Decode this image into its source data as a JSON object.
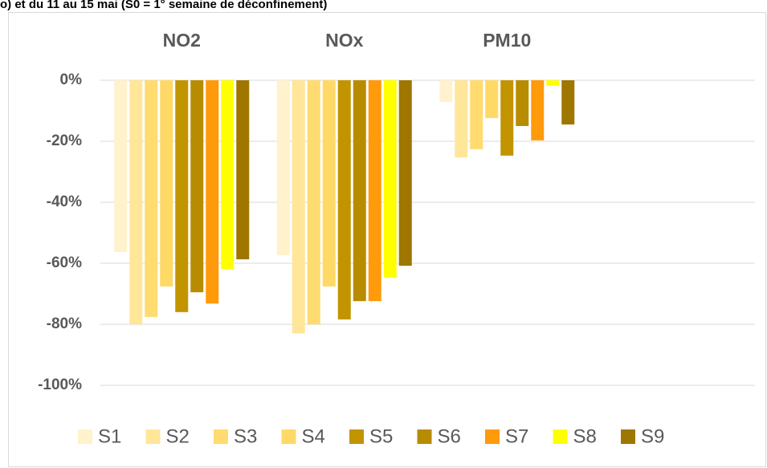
{
  "chart_data": {
    "type": "bar",
    "title": "o) et du 11 au 15 mai (S0 = 1° semaine de déconfinement)",
    "categories": [
      "NO2",
      "NOx",
      "PM10"
    ],
    "series": [
      {
        "name": "S1",
        "color": "#fff2cc",
        "values": [
          -56.3,
          -57.4,
          -7.1
        ]
      },
      {
        "name": "S2",
        "color": "#ffe699",
        "values": [
          -80,
          -83,
          -25.3
        ]
      },
      {
        "name": "S3",
        "color": "#ffdb70",
        "values": [
          -77.6,
          -80,
          -22.6
        ]
      },
      {
        "name": "S4",
        "color": "#ffd966",
        "values": [
          -67.6,
          -67.6,
          -12.4
        ]
      },
      {
        "name": "S5",
        "color": "#c29400",
        "values": [
          -76,
          -78.4,
          -24.7
        ]
      },
      {
        "name": "S6",
        "color": "#b88c00",
        "values": [
          -69.5,
          -72.4,
          -15
        ]
      },
      {
        "name": "S7",
        "color": "#ff9a0a",
        "values": [
          -73.2,
          -72.4,
          -19.7
        ]
      },
      {
        "name": "S8",
        "color": "#ffff00",
        "values": [
          -62,
          -64.7,
          -1.8
        ]
      },
      {
        "name": "S9",
        "color": "#9e7600",
        "values": [
          -58.7,
          -60.8,
          -14.5
        ]
      }
    ],
    "ylim": [
      -100,
      0
    ],
    "yticks": [
      {
        "value": 0,
        "label": "0%"
      },
      {
        "value": -20,
        "label": "-20%"
      },
      {
        "value": -40,
        "label": "-40%"
      },
      {
        "value": -60,
        "label": "-60%"
      },
      {
        "value": -80,
        "label": "-80%"
      },
      {
        "value": -100,
        "label": "-100%"
      }
    ],
    "grid": true,
    "legend": "bottom"
  }
}
